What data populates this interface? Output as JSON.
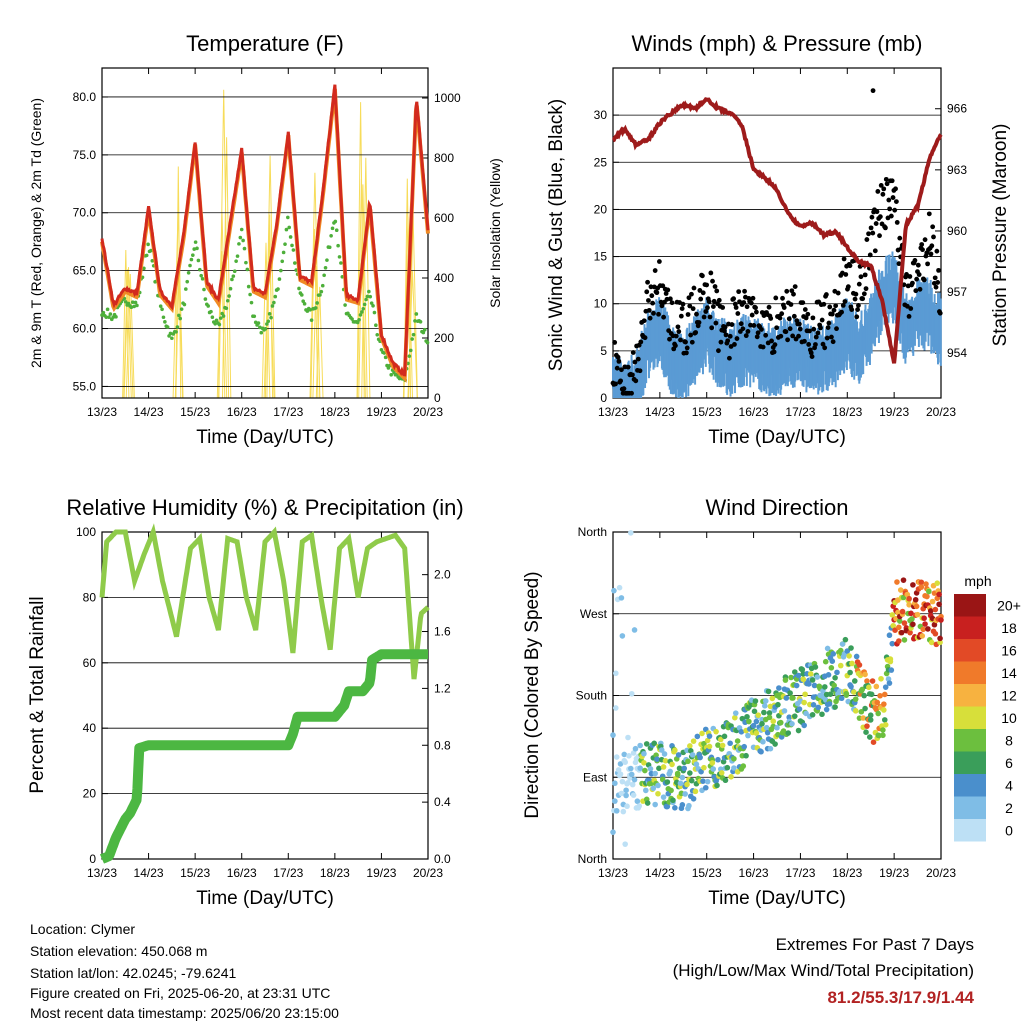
{
  "panels": {
    "temperature": {
      "title": "Temperature (F)",
      "ylabel_left": "2m & 9m T (Red, Orange) & 2m Td (Green)",
      "ylabel_right": "Solar Insolation (Yellow)",
      "xlabel": "Time (Day/UTC)",
      "yticks_left": [
        "55.0",
        "60.0",
        "65.0",
        "70.0",
        "75.0",
        "80.0"
      ],
      "yticks_right": [
        "0",
        "200",
        "400",
        "600",
        "800",
        "1000"
      ]
    },
    "winds": {
      "title": "Winds (mph) & Pressure (mb)",
      "ylabel_left": "Sonic Wind & Gust (Blue, Black)",
      "ylabel_right": "Station Pressure (Maroon)",
      "xlabel": "Time (Day/UTC)",
      "yticks_left": [
        "0",
        "5",
        "10",
        "15",
        "20",
        "25",
        "30"
      ],
      "yticks_right": [
        "954",
        "957",
        "960",
        "963",
        "966"
      ]
    },
    "humidity": {
      "title": "Relative Humidity (%) & Precipitation (in)",
      "ylabel_left": "Percent & Total Rainfall",
      "xlabel": "Time (Day/UTC)",
      "yticks_left": [
        "0",
        "20",
        "40",
        "60",
        "80",
        "100"
      ],
      "yticks_right": [
        "0.0",
        "0.4",
        "0.8",
        "1.2",
        "1.6",
        "2.0"
      ]
    },
    "direction": {
      "title": "Wind Direction",
      "ylabel_left": "Direction (Colored By Speed)",
      "xlabel": "Time (Day/UTC)",
      "yticks_left": [
        "North",
        "East",
        "South",
        "West",
        "North"
      ],
      "colorbar_title": "mph",
      "colorbar_labels": [
        "0",
        "2",
        "4",
        "6",
        "8",
        "10",
        "12",
        "14",
        "16",
        "18",
        "20+"
      ],
      "colorbar_colors": [
        "#bde0f5",
        "#7fbde6",
        "#4a8fcc",
        "#3a9e5a",
        "#6cbf3e",
        "#d7df3a",
        "#f7b240",
        "#f07a2a",
        "#e24a26",
        "#c8201f",
        "#9a1515"
      ]
    }
  },
  "xticks": [
    "13/23",
    "14/23",
    "15/23",
    "16/23",
    "17/23",
    "18/23",
    "19/23",
    "20/23"
  ],
  "colors": {
    "temp_2m": "#d22a1e",
    "temp_9m": "#f08a24",
    "dewpoint": "#4daf3a",
    "insolation": "#f7dc5a",
    "wind": "#5a9bd4",
    "gust": "#000000",
    "pressure": "#9e1b1b",
    "rh": "#8fcb4a",
    "precip": "#4cb742"
  },
  "info": {
    "location": "Location: Clymer",
    "elevation": "Station elevation: 450.068 m",
    "latlon": "Station lat/lon: 42.0245; -79.6241",
    "created": "Figure created on Fri, 2025-06-20, at 23:31 UTC",
    "recent": "Most recent data timestamp: 2025/06/20 23:15:00"
  },
  "extremes": {
    "line1": "Extremes For Past 7 Days",
    "line2": "(High/Low/Max Wind/Total Precipitation)",
    "values": "81.2/55.3/17.9/1.44"
  },
  "chart_data": [
    {
      "type": "line",
      "title": "Temperature (F)",
      "xlabel": "Time (Day/UTC)",
      "ylabel": "2m & 9m T (Red, Orange) & 2m Td (Green)",
      "ylabel_right": "Solar Insolation (Yellow)",
      "ylim": [
        54,
        82.5
      ],
      "ylim_right": [
        0,
        1100
      ],
      "x_days": [
        0,
        0.25,
        0.5,
        0.75,
        1.0,
        1.25,
        1.5,
        1.75,
        2.0,
        2.25,
        2.5,
        2.75,
        3.0,
        3.25,
        3.5,
        3.75,
        4.0,
        4.25,
        4.5,
        4.75,
        5.0,
        5.25,
        5.5,
        5.75,
        6.0,
        6.25,
        6.5,
        6.75,
        7.0
      ],
      "series": [
        {
          "name": "2m T",
          "values": [
            67.8,
            62.0,
            63.5,
            63.0,
            70.5,
            63.2,
            62.0,
            68.0,
            76.2,
            64.0,
            62.5,
            69.0,
            75.5,
            63.5,
            63.0,
            69.0,
            77.0,
            64.5,
            64.0,
            72.0,
            81.0,
            62.8,
            62.5,
            71.0,
            59.5,
            57.0,
            56.0,
            80.0,
            68.5
          ]
        },
        {
          "name": "2m Td",
          "values": [
            61.5,
            61.0,
            62.5,
            62.0,
            67.5,
            62.0,
            59.0,
            62.0,
            67.5,
            62.0,
            60.0,
            63.0,
            68.5,
            61.0,
            59.5,
            63.0,
            69.5,
            63.0,
            61.0,
            64.0,
            70.0,
            61.0,
            60.5,
            63.0,
            58.0,
            56.0,
            55.5,
            61.0,
            59.0
          ]
        },
        {
          "name": "Solar Insolation",
          "peaks_x": [
            0.6,
            1.6,
            2.6,
            3.6,
            4.6,
            5.6,
            6.6
          ],
          "peaks_y": [
            520,
            960,
            1090,
            980,
            960,
            1050,
            1000
          ]
        }
      ]
    },
    {
      "type": "line",
      "title": "Winds (mph) & Pressure (mb)",
      "xlabel": "Time (Day/UTC)",
      "ylabel": "Sonic Wind & Gust (Blue, Black)",
      "ylabel_right": "Station Pressure (Maroon)",
      "ylim": [
        0,
        35
      ],
      "ylim_right": [
        951.8,
        968
      ],
      "x_days": [
        0,
        0.25,
        0.5,
        0.75,
        1.0,
        1.25,
        1.5,
        1.75,
        2.0,
        2.25,
        2.5,
        2.75,
        3.0,
        3.25,
        3.5,
        3.75,
        4.0,
        4.25,
        4.5,
        4.75,
        5.0,
        5.25,
        5.5,
        5.75,
        6.0,
        6.25,
        6.5,
        6.75,
        7.0
      ],
      "series": [
        {
          "name": "Wind",
          "values": [
            3,
            1,
            2,
            7,
            8,
            5,
            4,
            6,
            8,
            6,
            5,
            6,
            6,
            5,
            5,
            6,
            6,
            5,
            5,
            6,
            8,
            6,
            8,
            12,
            13,
            8,
            10,
            10,
            8
          ]
        },
        {
          "name": "Gust",
          "values": [
            5,
            2,
            4,
            11,
            13,
            9,
            8,
            10,
            13,
            9,
            8,
            10,
            10,
            8,
            9,
            10,
            10,
            8,
            9,
            10,
            14,
            12,
            18,
            22,
            22,
            12,
            14,
            18,
            12
          ]
        },
        {
          "name": "Station Pressure",
          "values": [
            964.5,
            965.0,
            964.2,
            964.5,
            965.3,
            965.8,
            966.2,
            966.0,
            966.5,
            966.0,
            965.8,
            965.2,
            963.0,
            962.6,
            962.0,
            960.8,
            960.2,
            960.4,
            959.8,
            960.0,
            959.2,
            958.5,
            958.3,
            956.5,
            953.5,
            960.3,
            961.2,
            963.5,
            964.8
          ]
        }
      ]
    },
    {
      "type": "line",
      "title": "Relative Humidity (%) & Precipitation (in)",
      "xlabel": "Time (Day/UTC)",
      "ylabel": "Percent & Total Rainfall",
      "ylim": [
        0,
        100
      ],
      "ylim_right": [
        0,
        2.3
      ],
      "x_days": [
        0,
        0.1,
        0.3,
        0.5,
        0.7,
        0.9,
        1.1,
        1.3,
        1.6,
        1.9,
        2.1,
        2.3,
        2.5,
        2.7,
        2.9,
        3.1,
        3.3,
        3.5,
        3.7,
        3.9,
        4.1,
        4.3,
        4.5,
        4.7,
        4.9,
        5.1,
        5.3,
        5.5,
        5.7,
        5.9,
        6.1,
        6.3,
        6.5,
        6.7,
        6.85,
        7.0
      ],
      "series": [
        {
          "name": "Relative Humidity",
          "values": [
            80,
            97,
            100,
            100,
            85,
            93,
            100,
            85,
            68,
            95,
            98,
            80,
            70,
            98,
            97,
            80,
            70,
            97,
            100,
            85,
            63,
            97,
            99,
            80,
            64,
            95,
            98,
            80,
            95,
            97,
            98,
            99,
            95,
            55,
            75,
            77
          ]
        },
        {
          "name": "Total Precipitation",
          "x_days": [
            0,
            0.15,
            0.3,
            0.5,
            0.6,
            0.75,
            0.8,
            1.0,
            2.0,
            3.0,
            4.0,
            4.1,
            4.2,
            4.5,
            5.0,
            5.2,
            5.3,
            5.6,
            5.75,
            5.8,
            6.0,
            6.5,
            7.0
          ],
          "values": [
            0.0,
            0.02,
            0.15,
            0.28,
            0.32,
            0.42,
            0.78,
            0.8,
            0.8,
            0.8,
            0.8,
            0.88,
            1.0,
            1.0,
            1.0,
            1.08,
            1.18,
            1.18,
            1.24,
            1.4,
            1.44,
            1.44,
            1.44
          ]
        }
      ]
    },
    {
      "type": "scatter",
      "title": "Wind Direction",
      "xlabel": "Time (Day/UTC)",
      "ylabel": "Direction (Colored By Speed)",
      "ylim_degrees": [
        0,
        360
      ],
      "trend_x_days": [
        0,
        0.5,
        1.0,
        1.5,
        2.0,
        2.5,
        3.0,
        3.5,
        4.0,
        4.5,
        5.0,
        5.5,
        5.8,
        6.0,
        6.5,
        7.0
      ],
      "trend_deg": [
        80,
        90,
        95,
        85,
        110,
        120,
        145,
        160,
        175,
        195,
        210,
        160,
        170,
        270,
        275,
        270
      ]
    }
  ]
}
